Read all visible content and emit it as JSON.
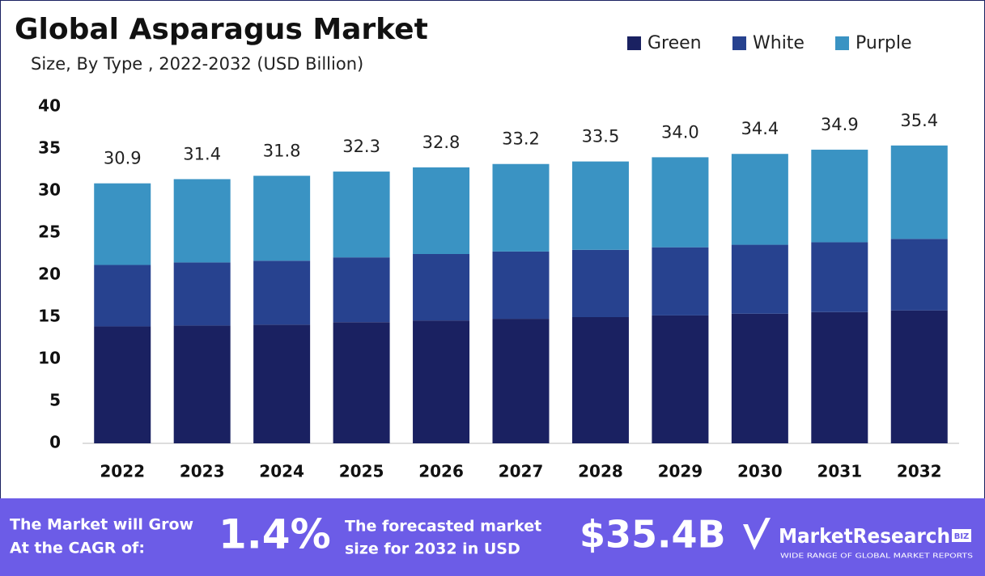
{
  "chart_data": {
    "type": "stacked_bar",
    "title": "Global Asparagus Market",
    "subtitle": "Size, By Type , 2022-2032 (USD Billion)",
    "categories": [
      "2022",
      "2023",
      "2024",
      "2025",
      "2026",
      "2027",
      "2028",
      "2029",
      "2030",
      "2031",
      "2032"
    ],
    "series": [
      {
        "name": "Green",
        "color": "#1a2161",
        "values": [
          13.9,
          14.0,
          14.1,
          14.4,
          14.6,
          14.8,
          15.0,
          15.2,
          15.4,
          15.6,
          15.8
        ]
      },
      {
        "name": "White",
        "color": "#27428f",
        "values": [
          7.3,
          7.5,
          7.6,
          7.7,
          7.9,
          8.0,
          8.0,
          8.1,
          8.2,
          8.3,
          8.5
        ]
      },
      {
        "name": "Purple",
        "color": "#3a93c3",
        "values": [
          9.7,
          9.9,
          10.1,
          10.2,
          10.3,
          10.4,
          10.5,
          10.7,
          10.8,
          11.0,
          11.1
        ]
      }
    ],
    "totals": [
      30.9,
      31.4,
      31.8,
      32.3,
      32.8,
      33.2,
      33.5,
      34.0,
      34.4,
      34.9,
      35.4
    ],
    "total_labels": [
      "30.9",
      "31.4",
      "31.8",
      "32.3",
      "32.8",
      "33.2",
      "33.5",
      "34.0",
      "34.4",
      "34.9",
      "35.4"
    ],
    "ylim": [
      0,
      40
    ],
    "yticks": [
      0,
      5,
      10,
      15,
      20,
      25,
      30,
      35,
      40
    ],
    "grid": false,
    "legend": "top-right"
  },
  "footer": {
    "cagr_text": [
      "The Market will Grow",
      "At the CAGR of:"
    ],
    "cagr": "1.4%",
    "forecast_text": [
      "The forecasted market",
      "size for 2032 in USD"
    ],
    "forecast": "$35.4B",
    "brand": "MarketResearch",
    "brand_badge": "BIZ",
    "tagline": "WIDE RANGE OF GLOBAL MARKET REPORTS"
  }
}
